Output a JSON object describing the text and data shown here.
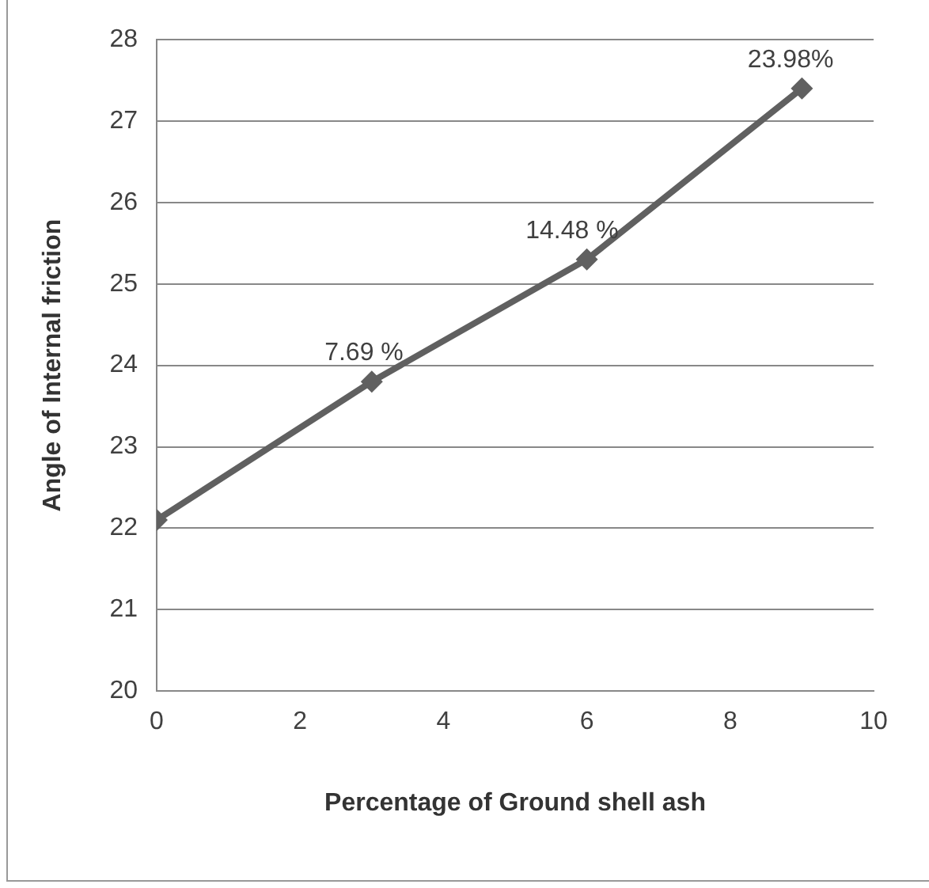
{
  "chart_data": {
    "type": "line",
    "xlabel": "Percentage of Ground shell ash",
    "ylabel": "Angle of Internal friction",
    "x": [
      0,
      3,
      6,
      9
    ],
    "series": [
      {
        "color": "#606060",
        "values": [
          22.1,
          23.8,
          25.3,
          27.4
        ]
      }
    ],
    "xlim": [
      0,
      10
    ],
    "xticks": [
      0,
      2,
      4,
      6,
      8,
      10
    ],
    "ylim": [
      20,
      28
    ],
    "yticks": [
      20,
      21,
      22,
      23,
      24,
      25,
      26,
      27,
      28
    ],
    "grid": "y",
    "legend": false,
    "marker": "diamond",
    "line_style": "solid",
    "annotations": [
      {
        "text": "7.69 %",
        "x": 3,
        "y": 23.8
      },
      {
        "text": "14.48 %",
        "x": 6,
        "y": 25.3
      },
      {
        "text": "23.98%",
        "x": 9,
        "y": 27.4
      }
    ]
  }
}
